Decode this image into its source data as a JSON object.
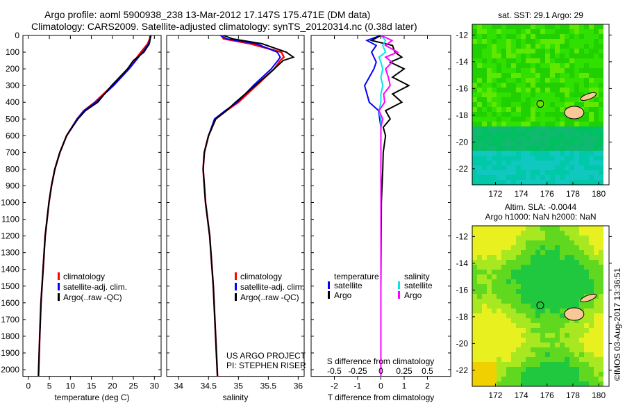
{
  "title_line1": "Argo profile: aoml 5900938_238 13-Mar-2012 17.147S 175.471E (DM data)",
  "title_line2": "Climatology: CARS2009. Satellite-adjusted climatology: synTS_20120314.nc (0.38d later)",
  "credit": "©IMOS 03-Aug-2017 13:36:51",
  "colors": {
    "climatology": "#ff0000",
    "satellite": "#0000ff",
    "argo": "#000000",
    "sal_satellite": "#00e5ee",
    "sal_argo": "#ff00ff"
  },
  "chart_data": [
    {
      "type": "line",
      "xlabel": "temperature (deg C)",
      "ylabel": "",
      "xlim": [
        -1.3,
        31.6
      ],
      "ylim": [
        2040,
        0
      ],
      "xticks": [
        0,
        5,
        10,
        15,
        20,
        25,
        30
      ],
      "yticks": [
        0,
        100,
        200,
        300,
        400,
        500,
        600,
        700,
        800,
        900,
        1000,
        1100,
        1200,
        1300,
        1400,
        1500,
        1600,
        1700,
        1800,
        1900,
        2000
      ],
      "legend": [
        "climatology",
        "satellite-adj. clim.",
        "Argo(..raw -QC)"
      ],
      "depth": [
        0,
        20,
        50,
        100,
        150,
        200,
        300,
        400,
        450,
        500,
        600,
        700,
        800,
        900,
        1000,
        1200,
        1400,
        1600,
        1800,
        2040
      ],
      "series": [
        {
          "name": "climatology",
          "values": [
            29.0,
            28.9,
            28.4,
            26.8,
            25.3,
            23.8,
            20.0,
            15.8,
            13.2,
            11.6,
            9.1,
            7.5,
            6.3,
            5.5,
            4.9,
            4.0,
            3.5,
            3.0,
            2.7,
            2.4
          ]
        },
        {
          "name": "satellite-adj. clim.",
          "values": [
            29.2,
            29.0,
            28.6,
            27.2,
            25.6,
            24.0,
            20.3,
            16.0,
            13.3,
            11.6,
            9.1,
            7.5,
            6.3,
            5.5,
            4.9,
            4.0,
            3.5,
            3.0,
            2.7,
            2.4
          ]
        },
        {
          "name": "Argo(..raw -QC)",
          "values": [
            29.1,
            29.0,
            28.8,
            27.5,
            25.0,
            23.6,
            19.8,
            16.5,
            13.6,
            11.8,
            9.1,
            7.5,
            6.3,
            5.5,
            4.9,
            4.0,
            3.5,
            3.0,
            2.7,
            2.4
          ]
        }
      ]
    },
    {
      "type": "line",
      "xlabel": "salinity",
      "xlim": [
        33.8,
        36.1
      ],
      "ylim": [
        2040,
        0
      ],
      "xticks": [
        34,
        34.5,
        35,
        35.5,
        36
      ],
      "legend": [
        "climatology",
        "satellite-adj. clim.",
        "Argo(..raw -QC)"
      ],
      "annotation": [
        "US ARGO PROJECT",
        "PI: STEPHEN RISER"
      ],
      "depth": [
        0,
        20,
        50,
        100,
        130,
        150,
        200,
        300,
        400,
        450,
        500,
        600,
        700,
        800,
        1000,
        1200,
        1500,
        2040
      ],
      "series": [
        {
          "name": "climatology",
          "values": [
            34.72,
            34.75,
            35.2,
            35.72,
            35.76,
            35.7,
            35.6,
            35.3,
            35.0,
            34.8,
            34.62,
            34.5,
            34.43,
            34.41,
            34.45,
            34.52,
            34.58,
            34.65
          ]
        },
        {
          "name": "satellite-adj. clim.",
          "values": [
            34.7,
            34.8,
            35.3,
            35.65,
            35.7,
            35.66,
            35.55,
            35.25,
            34.98,
            34.78,
            34.6,
            34.5,
            34.43,
            34.41,
            34.45,
            34.52,
            34.58,
            34.65
          ]
        },
        {
          "name": "Argo(..raw -QC)",
          "values": [
            34.75,
            34.9,
            35.4,
            35.8,
            35.92,
            35.75,
            35.6,
            35.28,
            34.95,
            34.8,
            34.62,
            34.5,
            34.43,
            34.41,
            34.45,
            34.52,
            34.58,
            34.65
          ]
        }
      ]
    },
    {
      "type": "line",
      "xlabel": "T difference from climatology",
      "xlabel2": "S difference from climatology",
      "xlim": [
        -3,
        3
      ],
      "ylim": [
        2040,
        0
      ],
      "xticks": [
        -2,
        -1,
        0,
        1,
        2
      ],
      "xticks2": [
        -0.5,
        -0.25,
        0,
        0.25,
        0.5
      ],
      "legend_titles": [
        "temperature",
        "salinity"
      ],
      "legend": [
        "satellite",
        "Argo",
        "satellite",
        "Argo"
      ],
      "depth": [
        0,
        30,
        60,
        100,
        130,
        160,
        200,
        250,
        300,
        350,
        400,
        450,
        500,
        550,
        600,
        700,
        800,
        900,
        1000,
        1500,
        2040
      ],
      "series": [
        {
          "name": "temperature satellite",
          "values": [
            0,
            -0.6,
            -0.2,
            -0.4,
            -0.3,
            -0.2,
            -0.3,
            -0.5,
            -0.7,
            -0.6,
            -0.5,
            -0.1,
            -0.05,
            0,
            0,
            0,
            0,
            0,
            0,
            0,
            0
          ]
        },
        {
          "name": "temperature Argo",
          "values": [
            0,
            -0.4,
            0.5,
            0.6,
            0.9,
            0.4,
            1.0,
            0.5,
            1.2,
            0.5,
            0.9,
            0.2,
            0.4,
            0.1,
            0.2,
            0.1,
            0.08,
            0.05,
            0.02,
            0,
            0
          ]
        },
        {
          "name": "salinity satellite",
          "values": [
            0,
            0.05,
            0.02,
            0.05,
            -0.02,
            0.0,
            0.02,
            0.0,
            0.02,
            0.0,
            0.0,
            -0.02,
            0.0,
            0,
            0,
            0,
            0,
            0,
            0,
            0,
            0
          ]
        },
        {
          "name": "salinity Argo",
          "values": [
            0,
            0.12,
            0.05,
            0.18,
            0.05,
            0.12,
            0.05,
            0.08,
            0.1,
            0.03,
            0.04,
            -0.02,
            0.02,
            0,
            0,
            0,
            0,
            0,
            0,
            0,
            0
          ]
        }
      ]
    },
    {
      "type": "heatmap",
      "title": "sat. SST: 29.1 Argo: 29",
      "xticks": [
        172,
        174,
        176,
        178,
        180
      ],
      "yticks": [
        -12,
        -14,
        -16,
        -18,
        -20,
        -22
      ],
      "xlim": [
        170.2,
        180.8
      ],
      "ylim": [
        -23.2,
        -11.2
      ],
      "marker": [
        175.471,
        -17.147
      ]
    },
    {
      "type": "heatmap",
      "title": "Altim. SLA: -0.0044",
      "subtitle": "Argo h1000: NaN h2000: NaN",
      "xticks": [
        172,
        174,
        176,
        178,
        180
      ],
      "yticks": [
        -12,
        -14,
        -16,
        -18,
        -20,
        -22
      ],
      "xlim": [
        170.2,
        180.8
      ],
      "ylim": [
        -23.2,
        -11.2
      ],
      "marker": [
        175.471,
        -17.147
      ]
    }
  ]
}
